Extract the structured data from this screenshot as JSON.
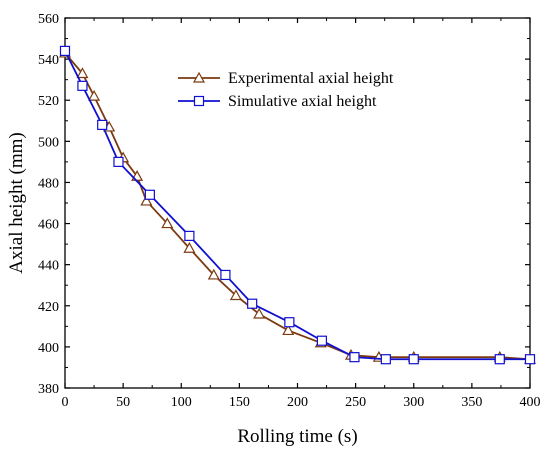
{
  "chart_data": {
    "type": "line",
    "xlabel": "Rolling time (s)",
    "ylabel": "Axial height (mm)",
    "xlim": [
      0,
      400
    ],
    "ylim": [
      380,
      560
    ],
    "xticks": [
      0,
      50,
      100,
      150,
      200,
      250,
      300,
      350,
      400
    ],
    "yticks": [
      380,
      400,
      420,
      440,
      460,
      480,
      500,
      520,
      540,
      560
    ],
    "grid": false,
    "legend_position": "top-right",
    "series": [
      {
        "name": "Experimental axial height",
        "color": "#7b3a10",
        "marker": "triangle",
        "x": [
          0,
          15,
          25,
          38,
          50,
          62,
          70,
          88,
          107,
          128,
          147,
          167,
          192,
          220,
          246,
          270,
          300,
          374,
          400
        ],
        "y": [
          543,
          533,
          522,
          507,
          492,
          483,
          471,
          460,
          448,
          435,
          425,
          416,
          408,
          402,
          396,
          395,
          395,
          395,
          394
        ]
      },
      {
        "name": "Simulative axial height",
        "color": "#1010d0",
        "marker": "square",
        "x": [
          0,
          15,
          32,
          46,
          73,
          107,
          138,
          161,
          193,
          221,
          249,
          276,
          300,
          374,
          400
        ],
        "y": [
          544,
          527,
          508,
          490,
          474,
          454,
          435,
          421,
          412,
          403,
          395,
          394,
          394,
          394,
          394
        ]
      }
    ]
  }
}
